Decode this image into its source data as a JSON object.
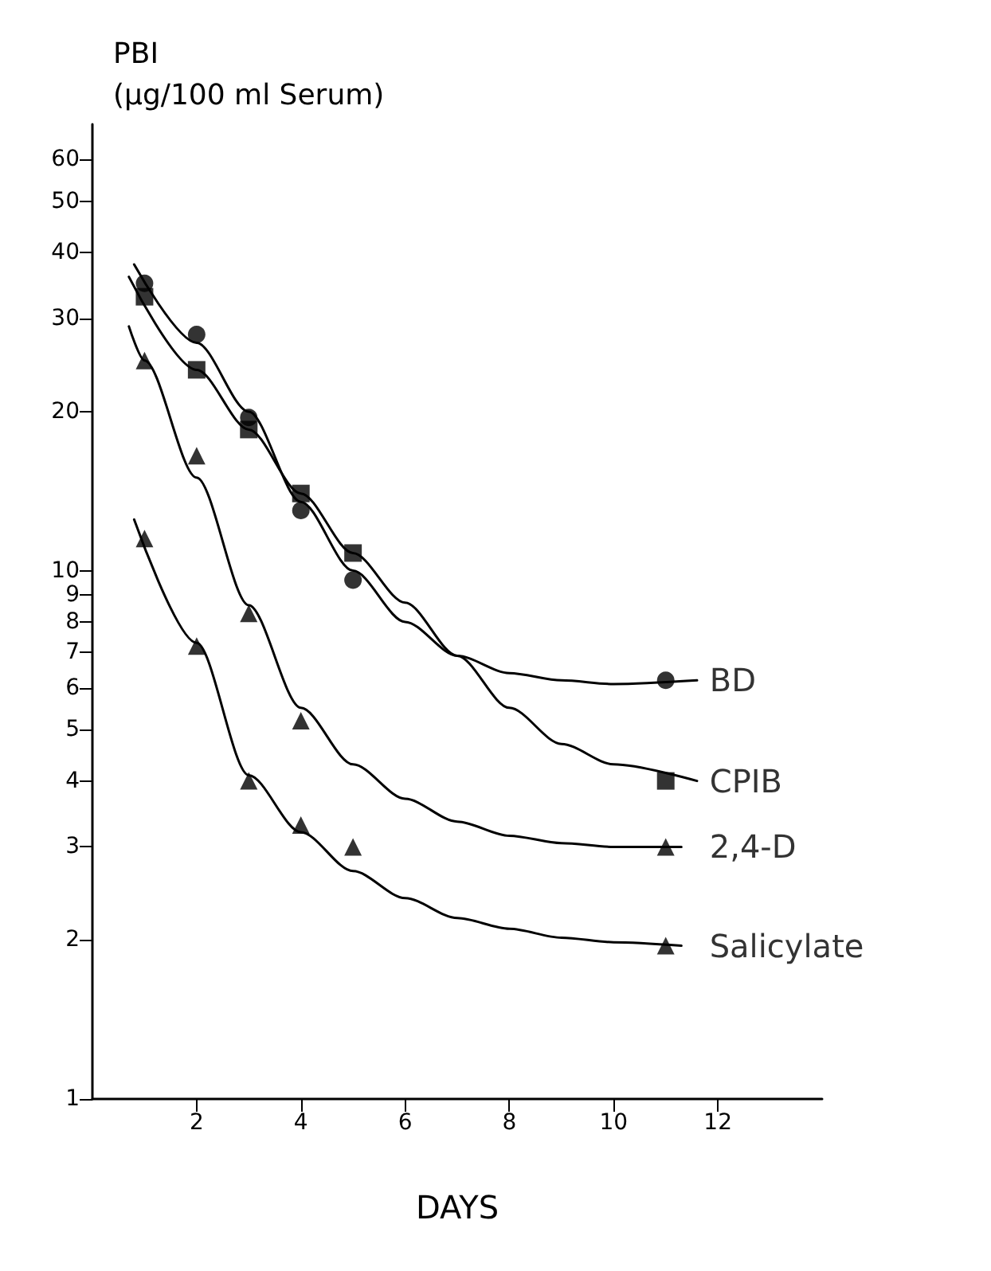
{
  "chart_data": {
    "type": "scatter",
    "ylabel": "PBI\n(μg/100 ml Serum)",
    "xlabel": "DAYS",
    "log": "y",
    "grid": false,
    "legend": false,
    "xlim": [
      0,
      14
    ],
    "xticks": [
      2,
      4,
      6,
      8,
      10,
      12
    ],
    "ylim": [
      1,
      70
    ],
    "yticks": [
      1,
      2,
      3,
      4,
      5,
      6,
      7,
      8,
      9,
      10,
      20,
      30,
      40,
      50,
      60
    ],
    "series": [
      {
        "name": "BD",
        "color": "#000000",
        "marker": "circle",
        "x": [
          1,
          2,
          3,
          4,
          5,
          11
        ],
        "values": [
          35,
          28,
          19.5,
          13,
          9.6,
          6.2
        ]
      },
      {
        "name": "CPIB",
        "color": "#000000",
        "marker": "square",
        "x": [
          1,
          2,
          3,
          4,
          5,
          11
        ],
        "values": [
          33,
          24,
          18.5,
          14,
          10.8,
          4
        ]
      },
      {
        "name": "2,4-D",
        "color": "#000000",
        "marker": "triangle",
        "x": [
          1,
          2,
          3,
          4,
          11
        ],
        "values": [
          25,
          16.5,
          8.3,
          5.2,
          3
        ]
      },
      {
        "name": "Salicylate",
        "color": "#000000",
        "marker": "triangle",
        "x": [
          1,
          2,
          3,
          4,
          5,
          11
        ],
        "values": [
          11.5,
          7.2,
          4,
          3.3,
          3,
          1.95
        ]
      },
      {
        "type": "line",
        "color": "#000000",
        "marker": "none",
        "x": [
          0.8,
          2,
          3,
          4,
          5,
          6,
          7,
          8,
          9,
          10,
          11.6
        ],
        "values": [
          38,
          27,
          20,
          13.5,
          10,
          8,
          6.9,
          6.4,
          6.2,
          6.1,
          6.2
        ]
      },
      {
        "type": "line",
        "color": "#000000",
        "marker": "none",
        "x": [
          0.7,
          2,
          3,
          4,
          5,
          6,
          7,
          8,
          9,
          10,
          11.6
        ],
        "values": [
          36,
          24,
          18.5,
          14,
          10.8,
          8.7,
          6.9,
          5.5,
          4.7,
          4.3,
          4
        ]
      },
      {
        "type": "line",
        "color": "#000000",
        "marker": "none",
        "x": [
          0.7,
          1,
          2,
          3,
          4,
          5,
          6,
          7,
          8,
          9,
          10,
          11.3
        ],
        "values": [
          29,
          25,
          15,
          8.6,
          5.5,
          4.3,
          3.7,
          3.35,
          3.15,
          3.05,
          3,
          3
        ]
      },
      {
        "type": "line",
        "color": "#000000",
        "marker": "none",
        "x": [
          0.8,
          2,
          3,
          4,
          5,
          6,
          7,
          8,
          9,
          10,
          11.3
        ],
        "values": [
          12.5,
          7.3,
          4.1,
          3.2,
          2.7,
          2.4,
          2.2,
          2.1,
          2.02,
          1.98,
          1.95
        ]
      }
    ]
  }
}
